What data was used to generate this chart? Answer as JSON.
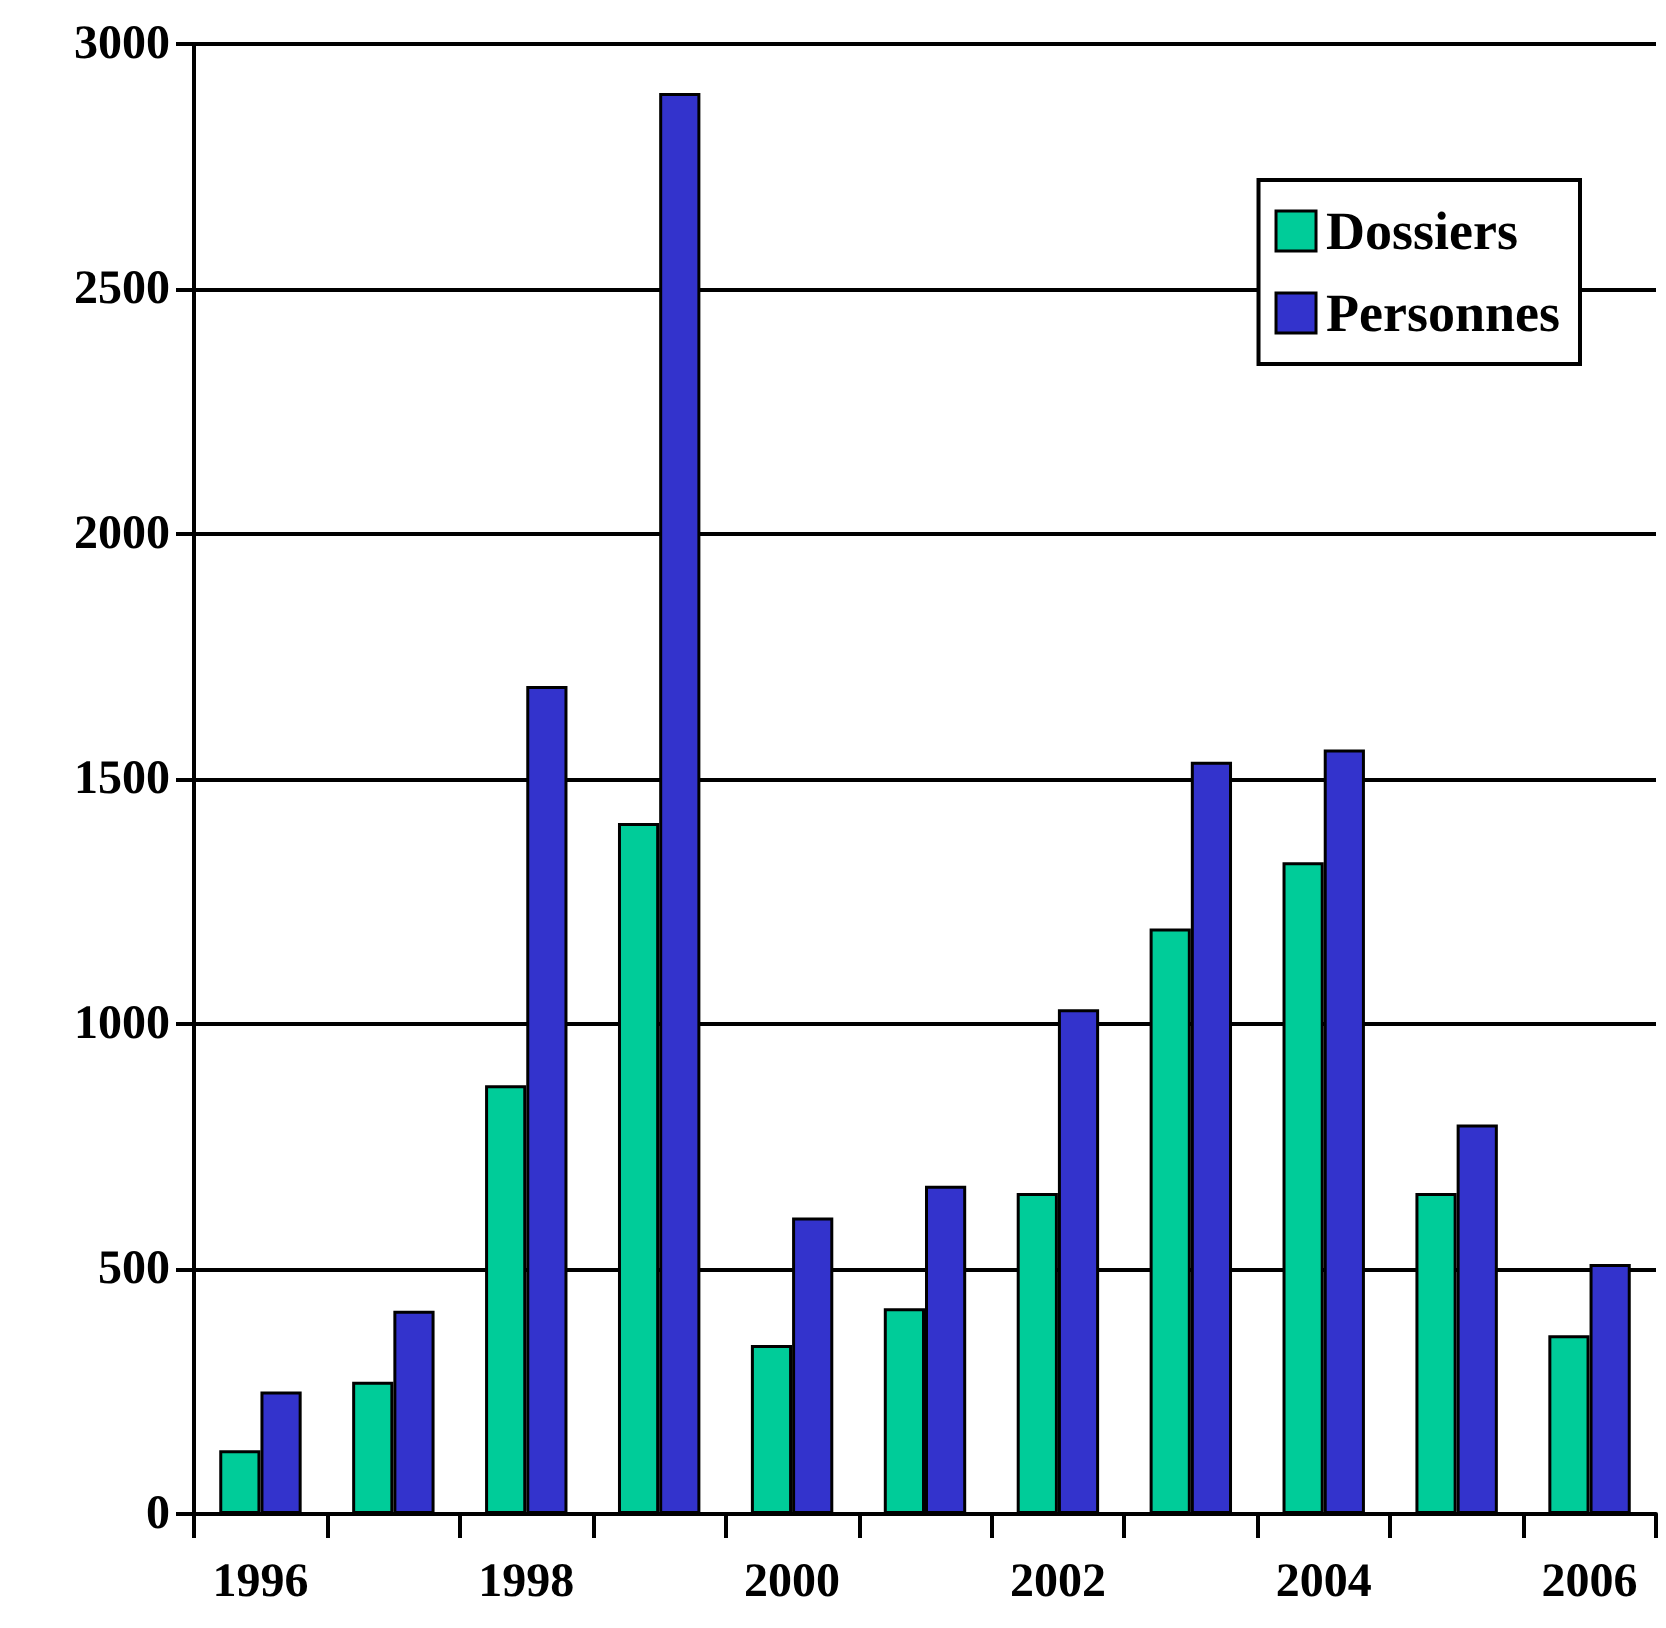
{
  "chart_data": {
    "type": "bar",
    "categories": [
      "1996",
      null,
      "1998",
      null,
      "2000",
      null,
      "2002",
      null,
      "2004",
      null,
      "2006"
    ],
    "series": [
      {
        "name": "Dossiers",
        "color": "#00cc99",
        "values": [
          130,
          270,
          875,
          1410,
          345,
          420,
          655,
          1195,
          1330,
          655,
          365
        ]
      },
      {
        "name": "Personnes",
        "color": "#3333cc",
        "values": [
          250,
          415,
          1690,
          2900,
          605,
          670,
          1030,
          1535,
          1560,
          795,
          510
        ]
      }
    ],
    "ylim": [
      0,
      3000
    ],
    "yticks": [
      0,
      500,
      1000,
      1500,
      2000,
      2500,
      3000
    ],
    "grid": "y",
    "legend": "top right"
  }
}
